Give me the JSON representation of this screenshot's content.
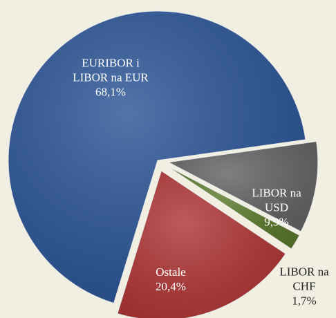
{
  "chart_data": {
    "type": "pie",
    "categories": [
      "LIBOR na USD",
      "LIBOR na CHF",
      "Ostale",
      "EURIBOR i LIBOR na EUR"
    ],
    "values": [
      9.9,
      1.7,
      20.4,
      68.1
    ],
    "value_labels": [
      "9,9%",
      "1,7%",
      "20,4%",
      "68,1%"
    ],
    "colors": [
      "#646464",
      "#5b7a2c",
      "#b03636",
      "#2b5596"
    ]
  }
}
